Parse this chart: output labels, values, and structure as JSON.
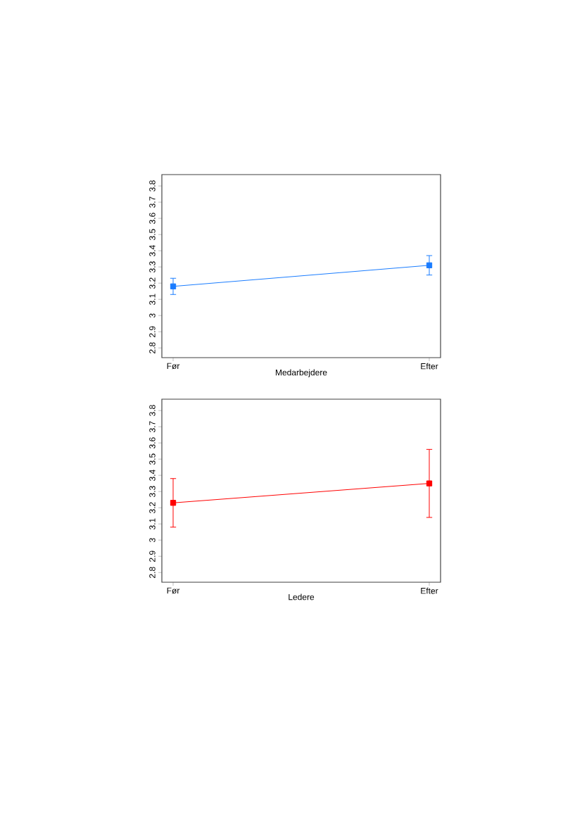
{
  "chart_data": [
    {
      "type": "line",
      "xlabel": "Medarbejdere",
      "categories": [
        "Før",
        "Efter"
      ],
      "ylim": [
        2.74,
        3.87
      ],
      "yticks": [
        2.8,
        2.9,
        3,
        3.1,
        3.2,
        3.3,
        3.4,
        3.5,
        3.6,
        3.7,
        3.8
      ],
      "marker": "square",
      "line_style": "solid",
      "series": [
        {
          "color": "#1a7cff",
          "values": [
            3.18,
            3.31
          ],
          "errors": [
            0.05,
            0.06
          ]
        }
      ]
    },
    {
      "type": "line",
      "xlabel": "Ledere",
      "categories": [
        "Før",
        "Efter"
      ],
      "ylim": [
        2.74,
        3.87
      ],
      "yticks": [
        2.8,
        2.9,
        3,
        3.1,
        3.2,
        3.3,
        3.4,
        3.5,
        3.6,
        3.7,
        3.8
      ],
      "marker": "square",
      "line_style": "solid",
      "series": [
        {
          "color": "#ff0000",
          "values": [
            3.23,
            3.35
          ],
          "errors": [
            0.15,
            0.21
          ]
        }
      ]
    }
  ]
}
